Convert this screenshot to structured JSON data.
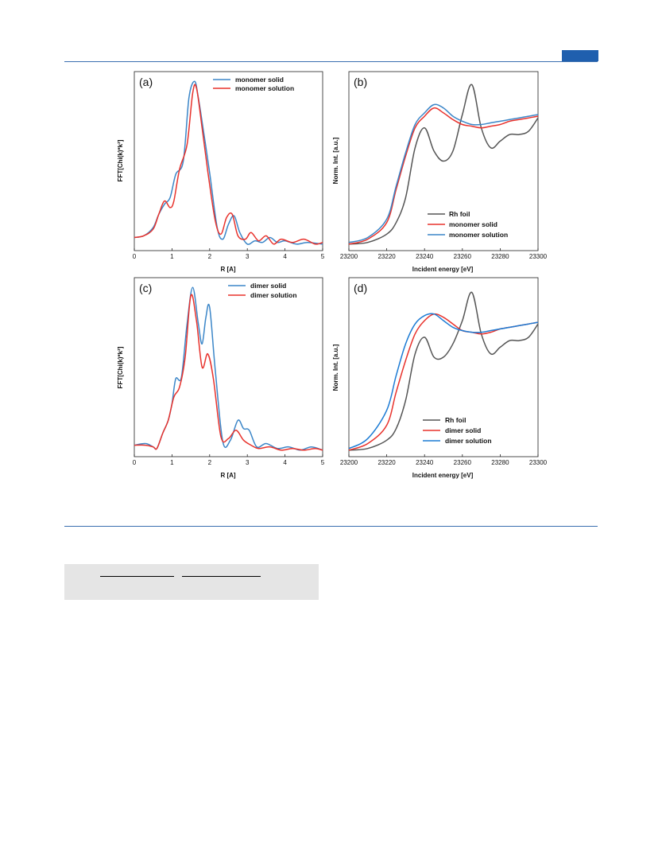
{
  "chart_data": [
    {
      "type": "line",
      "panel_label": "(a)",
      "xlabel": "R [A]",
      "ylabel": "FFT[Chi(k)*k²]",
      "xlim": [
        0,
        5
      ],
      "ylim": [
        0,
        1.03
      ],
      "xticks": [
        "0",
        "1",
        "2",
        "3",
        "4",
        "5"
      ],
      "legend_position": "top-right",
      "series": [
        {
          "name": "monomer solid",
          "color": "#3b86c8",
          "x": [
            0,
            0.25,
            0.5,
            0.65,
            0.8,
            0.95,
            1.1,
            1.3,
            1.45,
            1.6,
            1.7,
            1.85,
            2.0,
            2.2,
            2.35,
            2.5,
            2.65,
            2.8,
            3.0,
            3.2,
            3.4,
            3.6,
            3.8,
            4.0,
            4.3,
            4.6,
            5.0
          ],
          "y": [
            0.06,
            0.07,
            0.12,
            0.2,
            0.26,
            0.3,
            0.44,
            0.52,
            0.9,
            1.0,
            0.9,
            0.68,
            0.45,
            0.12,
            0.05,
            0.14,
            0.19,
            0.09,
            0.02,
            0.04,
            0.03,
            0.06,
            0.03,
            0.04,
            0.02,
            0.03,
            0.02
          ]
        },
        {
          "name": "monomer solution",
          "color": "#e8322c",
          "x": [
            0,
            0.25,
            0.5,
            0.65,
            0.8,
            0.95,
            1.05,
            1.2,
            1.4,
            1.55,
            1.65,
            1.8,
            1.95,
            2.15,
            2.3,
            2.45,
            2.6,
            2.75,
            2.95,
            3.1,
            3.3,
            3.5,
            3.7,
            3.9,
            4.2,
            4.5,
            4.8,
            5.0
          ],
          "y": [
            0.06,
            0.07,
            0.11,
            0.2,
            0.28,
            0.24,
            0.28,
            0.47,
            0.62,
            0.93,
            0.96,
            0.72,
            0.46,
            0.16,
            0.08,
            0.18,
            0.2,
            0.07,
            0.05,
            0.09,
            0.04,
            0.07,
            0.02,
            0.05,
            0.03,
            0.05,
            0.02,
            0.03
          ]
        }
      ]
    },
    {
      "type": "line",
      "panel_label": "(b)",
      "xlabel": "Incident energy [eV]",
      "ylabel": "Norm. Int. [a.u.]",
      "xlim": [
        23200,
        23300
      ],
      "ylim": [
        0,
        1.03
      ],
      "xticks": [
        "23200",
        "23220",
        "23240",
        "23260",
        "23280",
        "23300"
      ],
      "legend_position": "bottom-right",
      "series": [
        {
          "name": "Rh foil",
          "color": "#555555",
          "x": [
            23200,
            23210,
            23220,
            23225,
            23230,
            23235,
            23240,
            23245,
            23250,
            23255,
            23260,
            23265,
            23270,
            23275,
            23280,
            23285,
            23290,
            23295,
            23300
          ],
          "y": [
            0.02,
            0.03,
            0.08,
            0.15,
            0.3,
            0.6,
            0.72,
            0.58,
            0.52,
            0.58,
            0.8,
            0.98,
            0.72,
            0.6,
            0.64,
            0.68,
            0.68,
            0.7,
            0.78
          ]
        },
        {
          "name": "monomer solid",
          "color": "#e8322c",
          "x": [
            23200,
            23210,
            23220,
            23225,
            23230,
            23235,
            23240,
            23245,
            23250,
            23255,
            23260,
            23265,
            23270,
            23275,
            23280,
            23285,
            23290,
            23295,
            23300
          ],
          "y": [
            0.02,
            0.05,
            0.15,
            0.35,
            0.55,
            0.72,
            0.79,
            0.84,
            0.81,
            0.77,
            0.74,
            0.73,
            0.72,
            0.73,
            0.74,
            0.76,
            0.77,
            0.78,
            0.79
          ]
        },
        {
          "name": "monomer solution",
          "color": "#3b86c8",
          "x": [
            23200,
            23210,
            23220,
            23225,
            23230,
            23235,
            23240,
            23245,
            23250,
            23255,
            23260,
            23265,
            23270,
            23275,
            23280,
            23285,
            23290,
            23295,
            23300
          ],
          "y": [
            0.03,
            0.06,
            0.17,
            0.37,
            0.57,
            0.74,
            0.81,
            0.86,
            0.84,
            0.79,
            0.76,
            0.74,
            0.74,
            0.75,
            0.76,
            0.77,
            0.78,
            0.79,
            0.8
          ]
        }
      ]
    },
    {
      "type": "line",
      "panel_label": "(c)",
      "xlabel": "R [A]",
      "ylabel": "FFT[Chi(k)*k²]",
      "xlim": [
        0,
        5
      ],
      "ylim": [
        0,
        1.03
      ],
      "xticks": [
        "0",
        "1",
        "2",
        "3",
        "4",
        "5"
      ],
      "legend_position": "top-right",
      "series": [
        {
          "name": "dimer solid",
          "color": "#3b86c8",
          "x": [
            0,
            0.3,
            0.5,
            0.6,
            0.75,
            0.9,
            1.0,
            1.1,
            1.25,
            1.4,
            1.55,
            1.7,
            1.8,
            1.9,
            2.0,
            2.15,
            2.35,
            2.55,
            2.75,
            2.9,
            3.05,
            3.25,
            3.5,
            3.8,
            4.1,
            4.4,
            4.7,
            5.0
          ],
          "y": [
            0.05,
            0.06,
            0.04,
            0.03,
            0.12,
            0.2,
            0.3,
            0.45,
            0.46,
            0.78,
            1.0,
            0.78,
            0.66,
            0.82,
            0.88,
            0.5,
            0.07,
            0.08,
            0.2,
            0.15,
            0.14,
            0.04,
            0.06,
            0.03,
            0.04,
            0.02,
            0.04,
            0.02
          ]
        },
        {
          "name": "dimer solution",
          "color": "#e8322c",
          "x": [
            0,
            0.3,
            0.5,
            0.6,
            0.75,
            0.9,
            1.05,
            1.2,
            1.35,
            1.5,
            1.65,
            1.8,
            1.95,
            2.1,
            2.3,
            2.5,
            2.7,
            2.9,
            3.1,
            3.3,
            3.6,
            3.9,
            4.2,
            4.5,
            4.8,
            5.0
          ],
          "y": [
            0.05,
            0.05,
            0.04,
            0.03,
            0.12,
            0.2,
            0.34,
            0.4,
            0.58,
            0.95,
            0.8,
            0.52,
            0.6,
            0.45,
            0.1,
            0.09,
            0.14,
            0.08,
            0.05,
            0.03,
            0.04,
            0.02,
            0.03,
            0.02,
            0.03,
            0.02
          ]
        }
      ]
    },
    {
      "type": "line",
      "panel_label": "(d)",
      "xlabel": "Incident energy [eV]",
      "ylabel": "Norm. Int. [a.u.]",
      "xlim": [
        23200,
        23300
      ],
      "ylim": [
        0,
        1.03
      ],
      "xticks": [
        "23200",
        "23220",
        "23240",
        "23260",
        "23280",
        "23300"
      ],
      "legend_position": "bottom-right",
      "series": [
        {
          "name": "Rh foil",
          "color": "#555555",
          "x": [
            23200,
            23210,
            23220,
            23225,
            23230,
            23235,
            23240,
            23245,
            23250,
            23255,
            23260,
            23265,
            23270,
            23275,
            23280,
            23285,
            23290,
            23295,
            23300
          ],
          "y": [
            0.02,
            0.03,
            0.08,
            0.15,
            0.32,
            0.6,
            0.7,
            0.58,
            0.58,
            0.66,
            0.8,
            0.97,
            0.72,
            0.6,
            0.64,
            0.68,
            0.68,
            0.7,
            0.78
          ]
        },
        {
          "name": "dimer solid",
          "color": "#e8322c",
          "x": [
            23200,
            23210,
            23220,
            23225,
            23230,
            23235,
            23240,
            23245,
            23250,
            23255,
            23260,
            23265,
            23270,
            23275,
            23280,
            23285,
            23290,
            23295,
            23300
          ],
          "y": [
            0.02,
            0.06,
            0.17,
            0.37,
            0.56,
            0.72,
            0.8,
            0.84,
            0.82,
            0.78,
            0.74,
            0.73,
            0.72,
            0.73,
            0.75,
            0.76,
            0.77,
            0.78,
            0.79
          ]
        },
        {
          "name": "dimer solution",
          "color": "#1c7bd4",
          "x": [
            23200,
            23210,
            23220,
            23225,
            23230,
            23235,
            23240,
            23245,
            23250,
            23255,
            23260,
            23265,
            23270,
            23275,
            23280,
            23285,
            23290,
            23295,
            23300
          ],
          "y": [
            0.03,
            0.09,
            0.26,
            0.47,
            0.66,
            0.78,
            0.83,
            0.84,
            0.8,
            0.76,
            0.74,
            0.73,
            0.73,
            0.74,
            0.75,
            0.76,
            0.77,
            0.78,
            0.79
          ]
        }
      ]
    }
  ],
  "colors": {
    "rule": "#3b6fb0",
    "header_tab": "#1f5fae",
    "footer_box": "#e5e5e5"
  }
}
